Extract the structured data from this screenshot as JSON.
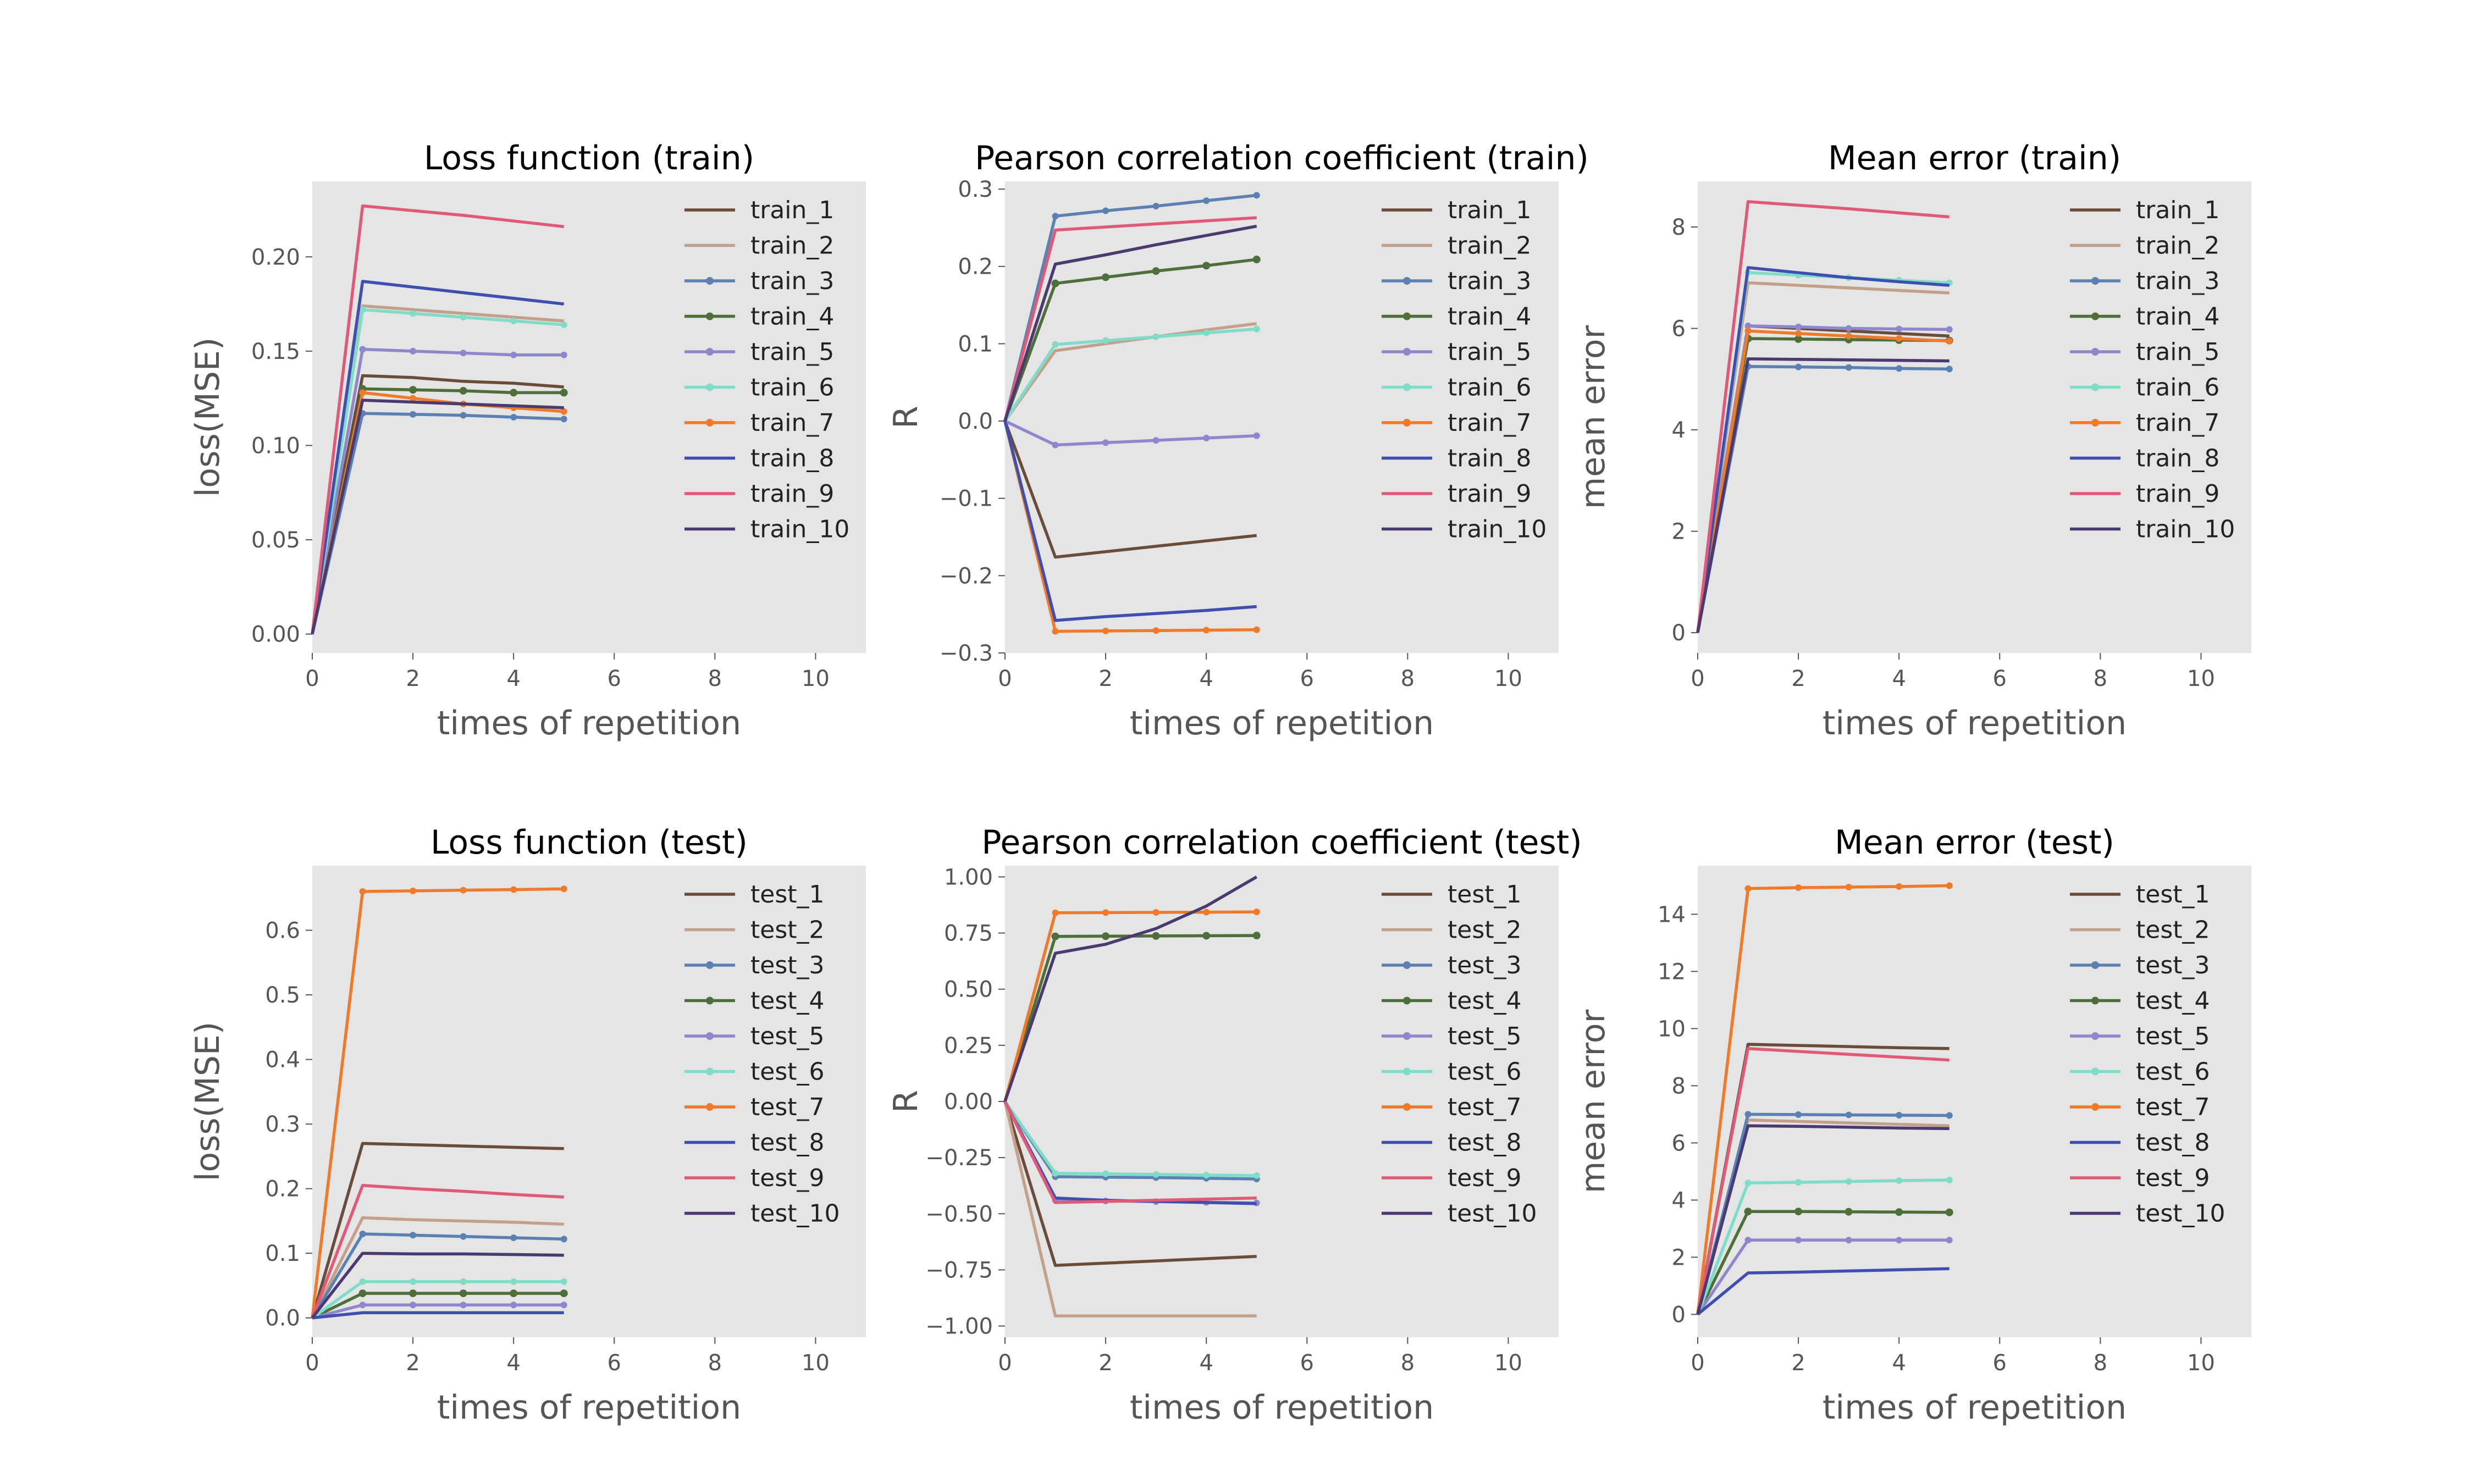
{
  "chart_data": [
    {
      "type": "line",
      "title": "Loss function (train)",
      "xlabel": "times of repetition",
      "ylabel": "loss(MSE)",
      "xlim": [
        0,
        11
      ],
      "ylim": [
        -0.01,
        0.24
      ],
      "xticks": [
        0,
        2,
        4,
        6,
        8,
        10
      ],
      "yticks": [
        0.0,
        0.05,
        0.1,
        0.15,
        0.2
      ],
      "ytick_labels": [
        "0.00",
        "0.05",
        "0.10",
        "0.15",
        "0.20"
      ],
      "grid": false,
      "legend": "upper-right",
      "x": [
        0,
        1,
        2,
        3,
        4,
        5
      ],
      "series": [
        {
          "name": "train_1",
          "color": "#6b4c3b",
          "marker": "none",
          "values": [
            0,
            0.137,
            0.136,
            0.134,
            0.133,
            0.131
          ]
        },
        {
          "name": "train_2",
          "color": "#c4a08a",
          "marker": "none",
          "values": [
            0,
            0.174,
            0.172,
            0.17,
            0.168,
            0.166
          ]
        },
        {
          "name": "train_3",
          "color": "#5b80b2",
          "marker": "dot",
          "values": [
            0,
            0.117,
            0.1165,
            0.116,
            0.115,
            0.114
          ]
        },
        {
          "name": "train_4",
          "color": "#4e6e3a",
          "marker": "tri",
          "values": [
            0,
            0.13,
            0.1295,
            0.129,
            0.128,
            0.128
          ]
        },
        {
          "name": "train_5",
          "color": "#8e87cc",
          "marker": "dot",
          "values": [
            0,
            0.151,
            0.15,
            0.149,
            0.148,
            0.148
          ]
        },
        {
          "name": "train_6",
          "color": "#7fdcc8",
          "marker": "dot",
          "values": [
            0,
            0.172,
            0.17,
            0.168,
            0.166,
            0.164
          ]
        },
        {
          "name": "train_7",
          "color": "#f07a2a",
          "marker": "dot",
          "values": [
            0,
            0.128,
            0.125,
            0.122,
            0.12,
            0.118
          ]
        },
        {
          "name": "train_8",
          "color": "#3f4fb0",
          "marker": "none",
          "values": [
            0,
            0.187,
            0.184,
            0.181,
            0.178,
            0.175
          ]
        },
        {
          "name": "train_9",
          "color": "#e05a78",
          "marker": "none",
          "values": [
            0,
            0.227,
            0.2245,
            0.222,
            0.219,
            0.216
          ]
        },
        {
          "name": "train_10",
          "color": "#4a3a70",
          "marker": "none",
          "values": [
            0,
            0.124,
            0.123,
            0.122,
            0.121,
            0.12
          ]
        }
      ]
    },
    {
      "type": "line",
      "title": "Pearson correlation coefficient (train)",
      "xlabel": "times of repetition",
      "ylabel": "R",
      "xlim": [
        0,
        11
      ],
      "ylim": [
        -0.3,
        0.31
      ],
      "xticks": [
        0,
        2,
        4,
        6,
        8,
        10
      ],
      "yticks": [
        -0.3,
        -0.2,
        -0.1,
        0.0,
        0.1,
        0.2,
        0.3
      ],
      "ytick_labels": [
        "−0.3",
        "−0.2",
        "−0.1",
        "0.0",
        "0.1",
        "0.2",
        "0.3"
      ],
      "grid": false,
      "legend": "upper-right",
      "x": [
        0,
        1,
        2,
        3,
        4,
        5
      ],
      "series": [
        {
          "name": "train_1",
          "color": "#6b4c3b",
          "marker": "none",
          "values": [
            0,
            -0.176,
            -0.169,
            -0.162,
            -0.155,
            -0.148
          ]
        },
        {
          "name": "train_2",
          "color": "#c4a08a",
          "marker": "none",
          "values": [
            0,
            0.091,
            0.1,
            0.109,
            0.118,
            0.126
          ]
        },
        {
          "name": "train_3",
          "color": "#5b80b2",
          "marker": "dot",
          "values": [
            0,
            0.265,
            0.272,
            0.278,
            0.285,
            0.292
          ]
        },
        {
          "name": "train_4",
          "color": "#4e6e3a",
          "marker": "tri",
          "values": [
            0,
            0.178,
            0.186,
            0.194,
            0.201,
            0.209
          ]
        },
        {
          "name": "train_5",
          "color": "#8e87cc",
          "marker": "dot",
          "values": [
            0,
            -0.031,
            -0.028,
            -0.025,
            -0.022,
            -0.019
          ]
        },
        {
          "name": "train_6",
          "color": "#7fdcc8",
          "marker": "dot",
          "values": [
            0,
            0.099,
            0.104,
            0.109,
            0.114,
            0.119
          ]
        },
        {
          "name": "train_7",
          "color": "#f07a2a",
          "marker": "dot",
          "values": [
            0,
            -0.272,
            -0.2715,
            -0.271,
            -0.2705,
            -0.27
          ]
        },
        {
          "name": "train_8",
          "color": "#3f4fb0",
          "marker": "none",
          "values": [
            0,
            -0.258,
            -0.253,
            -0.249,
            -0.245,
            -0.24
          ]
        },
        {
          "name": "train_9",
          "color": "#e05a78",
          "marker": "none",
          "values": [
            0,
            0.247,
            0.251,
            0.255,
            0.259,
            0.263
          ]
        },
        {
          "name": "train_10",
          "color": "#4a3a70",
          "marker": "none",
          "values": [
            0,
            0.203,
            0.215,
            0.228,
            0.24,
            0.252
          ]
        }
      ]
    },
    {
      "type": "line",
      "title": "Mean error (train)",
      "xlabel": "times of repetition",
      "ylabel": "mean error",
      "xlim": [
        0,
        11
      ],
      "ylim": [
        -0.4,
        8.9
      ],
      "xticks": [
        0,
        2,
        4,
        6,
        8,
        10
      ],
      "yticks": [
        0,
        2,
        4,
        6,
        8
      ],
      "ytick_labels": [
        "0",
        "2",
        "4",
        "6",
        "8"
      ],
      "grid": false,
      "legend": "upper-right",
      "x": [
        0,
        1,
        2,
        3,
        4,
        5
      ],
      "series": [
        {
          "name": "train_1",
          "color": "#6b4c3b",
          "marker": "none",
          "values": [
            0,
            6.05,
            6.0,
            5.95,
            5.9,
            5.85
          ]
        },
        {
          "name": "train_2",
          "color": "#c4a08a",
          "marker": "none",
          "values": [
            0,
            6.9,
            6.85,
            6.8,
            6.75,
            6.7
          ]
        },
        {
          "name": "train_3",
          "color": "#5b80b2",
          "marker": "dot",
          "values": [
            0,
            5.25,
            5.24,
            5.23,
            5.21,
            5.2
          ]
        },
        {
          "name": "train_4",
          "color": "#4e6e3a",
          "marker": "tri",
          "values": [
            0,
            5.8,
            5.79,
            5.78,
            5.77,
            5.76
          ]
        },
        {
          "name": "train_5",
          "color": "#8e87cc",
          "marker": "dot",
          "values": [
            0,
            6.05,
            6.03,
            6.0,
            5.99,
            5.98
          ]
        },
        {
          "name": "train_6",
          "color": "#7fdcc8",
          "marker": "dot",
          "values": [
            0,
            7.1,
            7.05,
            7.0,
            6.95,
            6.9
          ]
        },
        {
          "name": "train_7",
          "color": "#f07a2a",
          "marker": "dot",
          "values": [
            0,
            5.95,
            5.9,
            5.85,
            5.8,
            5.75
          ]
        },
        {
          "name": "train_8",
          "color": "#3f4fb0",
          "marker": "none",
          "values": [
            0,
            7.2,
            7.1,
            7.0,
            6.92,
            6.85
          ]
        },
        {
          "name": "train_9",
          "color": "#e05a78",
          "marker": "none",
          "values": [
            0,
            8.5,
            8.43,
            8.36,
            8.28,
            8.2
          ]
        },
        {
          "name": "train_10",
          "color": "#4a3a70",
          "marker": "none",
          "values": [
            0,
            5.4,
            5.39,
            5.38,
            5.37,
            5.36
          ]
        }
      ]
    },
    {
      "type": "line",
      "title": "Loss function (test)",
      "xlabel": "times of repetition",
      "ylabel": "loss(MSE)",
      "xlim": [
        0,
        11
      ],
      "ylim": [
        -0.03,
        0.7
      ],
      "xticks": [
        0,
        2,
        4,
        6,
        8,
        10
      ],
      "yticks": [
        0.0,
        0.1,
        0.2,
        0.3,
        0.4,
        0.5,
        0.6
      ],
      "ytick_labels": [
        "0.0",
        "0.1",
        "0.2",
        "0.3",
        "0.4",
        "0.5",
        "0.6"
      ],
      "grid": false,
      "legend": "upper-right",
      "x": [
        0,
        1,
        2,
        3,
        4,
        5
      ],
      "series": [
        {
          "name": "test_1",
          "color": "#6b4c3b",
          "marker": "none",
          "values": [
            0,
            0.27,
            0.268,
            0.266,
            0.264,
            0.262
          ]
        },
        {
          "name": "test_2",
          "color": "#c4a08a",
          "marker": "none",
          "values": [
            0,
            0.155,
            0.152,
            0.15,
            0.148,
            0.145
          ]
        },
        {
          "name": "test_3",
          "color": "#5b80b2",
          "marker": "dot",
          "values": [
            0,
            0.13,
            0.128,
            0.126,
            0.124,
            0.122
          ]
        },
        {
          "name": "test_4",
          "color": "#4e6e3a",
          "marker": "tri",
          "values": [
            0,
            0.038,
            0.038,
            0.038,
            0.038,
            0.038
          ]
        },
        {
          "name": "test_5",
          "color": "#8e87cc",
          "marker": "dot",
          "values": [
            0,
            0.02,
            0.02,
            0.02,
            0.02,
            0.02
          ]
        },
        {
          "name": "test_6",
          "color": "#7fdcc8",
          "marker": "dot",
          "values": [
            0,
            0.056,
            0.056,
            0.056,
            0.056,
            0.056
          ]
        },
        {
          "name": "test_7",
          "color": "#f07a2a",
          "marker": "dot",
          "values": [
            0,
            0.66,
            0.661,
            0.662,
            0.663,
            0.664
          ]
        },
        {
          "name": "test_8",
          "color": "#3f4fb0",
          "marker": "none",
          "values": [
            0,
            0.008,
            0.008,
            0.008,
            0.008,
            0.008
          ]
        },
        {
          "name": "test_9",
          "color": "#e05a78",
          "marker": "none",
          "values": [
            0,
            0.205,
            0.2,
            0.196,
            0.191,
            0.187
          ]
        },
        {
          "name": "test_10",
          "color": "#4a3a70",
          "marker": "none",
          "values": [
            0,
            0.1,
            0.099,
            0.099,
            0.098,
            0.097
          ]
        }
      ]
    },
    {
      "type": "line",
      "title": "Pearson correlation coefficient (test)",
      "xlabel": "times of repetition",
      "ylabel": "R",
      "xlim": [
        0,
        11
      ],
      "ylim": [
        -1.05,
        1.05
      ],
      "xticks": [
        0,
        2,
        4,
        6,
        8,
        10
      ],
      "yticks": [
        -1.0,
        -0.75,
        -0.5,
        -0.25,
        0.0,
        0.25,
        0.5,
        0.75,
        1.0
      ],
      "ytick_labels": [
        "−1.00",
        "−0.75",
        "−0.50",
        "−0.25",
        "0.00",
        "0.25",
        "0.50",
        "0.75",
        "1.00"
      ],
      "grid": false,
      "legend": "upper-right",
      "x": [
        0,
        1,
        2,
        3,
        4,
        5
      ],
      "series": [
        {
          "name": "test_1",
          "color": "#6b4c3b",
          "marker": "none",
          "values": [
            0,
            -0.73,
            -0.72,
            -0.71,
            -0.7,
            -0.69
          ]
        },
        {
          "name": "test_2",
          "color": "#c4a08a",
          "marker": "none",
          "values": [
            0,
            -0.955,
            -0.955,
            -0.955,
            -0.955,
            -0.955
          ]
        },
        {
          "name": "test_3",
          "color": "#5b80b2",
          "marker": "dot",
          "values": [
            0,
            -0.335,
            -0.337,
            -0.339,
            -0.342,
            -0.345
          ]
        },
        {
          "name": "test_4",
          "color": "#4e6e3a",
          "marker": "tri",
          "values": [
            0,
            0.735,
            0.736,
            0.737,
            0.738,
            0.739
          ]
        },
        {
          "name": "test_5",
          "color": "#8e87cc",
          "marker": "dot",
          "values": [
            0,
            -0.44,
            -0.443,
            -0.446,
            -0.449,
            -0.452
          ]
        },
        {
          "name": "test_6",
          "color": "#7fdcc8",
          "marker": "dot",
          "values": [
            0,
            -0.32,
            -0.322,
            -0.325,
            -0.328,
            -0.33
          ]
        },
        {
          "name": "test_7",
          "color": "#f07a2a",
          "marker": "dot",
          "values": [
            0,
            0.84,
            0.841,
            0.842,
            0.843,
            0.844
          ]
        },
        {
          "name": "test_8",
          "color": "#3f4fb0",
          "marker": "none",
          "values": [
            0,
            -0.43,
            -0.44,
            -0.445,
            -0.45,
            -0.455
          ]
        },
        {
          "name": "test_9",
          "color": "#e05a78",
          "marker": "none",
          "values": [
            0,
            -0.45,
            -0.445,
            -0.44,
            -0.435,
            -0.43
          ]
        },
        {
          "name": "test_10",
          "color": "#4a3a70",
          "marker": "none",
          "values": [
            0,
            0.66,
            0.7,
            0.77,
            0.87,
            1.0
          ]
        }
      ]
    },
    {
      "type": "line",
      "title": "Mean error (test)",
      "xlabel": "times of repetition",
      "ylabel": "mean error",
      "xlim": [
        0,
        11
      ],
      "ylim": [
        -0.8,
        15.7
      ],
      "xticks": [
        0,
        2,
        4,
        6,
        8,
        10
      ],
      "yticks": [
        0,
        2,
        4,
        6,
        8,
        10,
        12,
        14
      ],
      "ytick_labels": [
        "0",
        "2",
        "4",
        "6",
        "8",
        "10",
        "12",
        "14"
      ],
      "grid": false,
      "legend": "upper-right",
      "x": [
        0,
        1,
        2,
        3,
        4,
        5
      ],
      "series": [
        {
          "name": "test_1",
          "color": "#6b4c3b",
          "marker": "none",
          "values": [
            0,
            9.45,
            9.41,
            9.37,
            9.33,
            9.3
          ]
        },
        {
          "name": "test_2",
          "color": "#c4a08a",
          "marker": "none",
          "values": [
            0,
            6.8,
            6.75,
            6.7,
            6.65,
            6.6
          ]
        },
        {
          "name": "test_3",
          "color": "#5b80b2",
          "marker": "dot",
          "values": [
            0,
            7.0,
            6.99,
            6.98,
            6.97,
            6.96
          ]
        },
        {
          "name": "test_4",
          "color": "#4e6e3a",
          "marker": "tri",
          "values": [
            0,
            3.6,
            3.6,
            3.59,
            3.58,
            3.57
          ]
        },
        {
          "name": "test_5",
          "color": "#8e87cc",
          "marker": "dot",
          "values": [
            0,
            2.6,
            2.6,
            2.6,
            2.6,
            2.6
          ]
        },
        {
          "name": "test_6",
          "color": "#7fdcc8",
          "marker": "dot",
          "values": [
            0,
            4.6,
            4.62,
            4.65,
            4.68,
            4.7
          ]
        },
        {
          "name": "test_7",
          "color": "#f07a2a",
          "marker": "dot",
          "values": [
            0,
            14.9,
            14.93,
            14.95,
            14.97,
            15.0
          ]
        },
        {
          "name": "test_8",
          "color": "#3f4fb0",
          "marker": "none",
          "values": [
            0,
            1.45,
            1.48,
            1.52,
            1.56,
            1.6
          ]
        },
        {
          "name": "test_9",
          "color": "#e05a78",
          "marker": "none",
          "values": [
            0,
            9.3,
            9.2,
            9.1,
            9.0,
            8.9
          ]
        },
        {
          "name": "test_10",
          "color": "#4a3a70",
          "marker": "none",
          "values": [
            0,
            6.6,
            6.58,
            6.55,
            6.52,
            6.5
          ]
        }
      ]
    }
  ]
}
